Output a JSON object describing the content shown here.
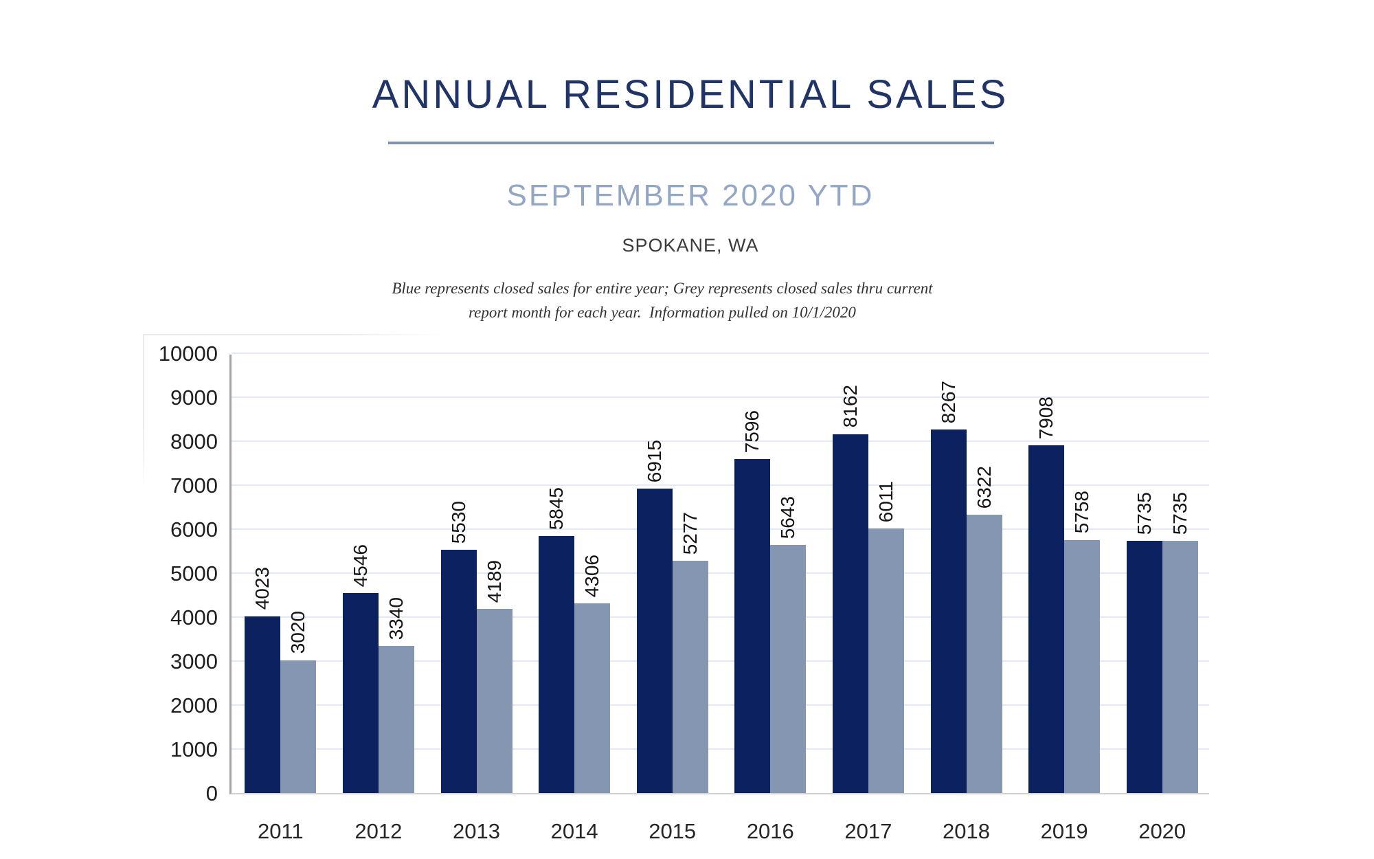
{
  "header": {
    "title": "ANNUAL RESIDENTIAL SALES",
    "subtitle": "SEPTEMBER 2020 YTD",
    "location": "SPOKANE, WA",
    "note_line1": "Blue represents closed sales for entire year; Grey represents closed sales thru current",
    "note_line2": "report month for each year.  Information pulled on 10/1/2020"
  },
  "colors": {
    "title_navy": "#203467",
    "subtitle_steel": "#93a7c4",
    "divider": "#8091b5",
    "bar_blue": "#0b2160",
    "bar_grey": "#8496b1",
    "gridline": "#e2e8f4",
    "axis_vertical": "#a3a3a3",
    "axis_baseline": "#d2d2d2",
    "value_label": "#141414"
  },
  "chart_data": {
    "type": "bar",
    "title": "ANNUAL RESIDENTIAL SALES — SEPTEMBER 2020 YTD — SPOKANE, WA",
    "categories": [
      "2011",
      "2012",
      "2013",
      "2014",
      "2015",
      "2016",
      "2017",
      "2018",
      "2019",
      "2020"
    ],
    "series": [
      {
        "name": "Blue — closed sales for entire year",
        "color": "#0b2160",
        "values": [
          4023,
          4546,
          5530,
          5845,
          6915,
          7596,
          8162,
          8267,
          7908,
          5735
        ]
      },
      {
        "name": "Grey — closed sales thru current report month",
        "color": "#8496b1",
        "values": [
          3020,
          3340,
          4189,
          4306,
          5277,
          5643,
          6011,
          6322,
          5758,
          5735
        ]
      }
    ],
    "xlabel": "",
    "ylabel": "",
    "ylim": [
      0,
      10000
    ],
    "ytick_interval": 1000,
    "yticks": [
      0,
      1000,
      2000,
      3000,
      4000,
      5000,
      6000,
      7000,
      8000,
      9000,
      10000
    ],
    "grid": "horizontal",
    "legend_position": "none",
    "value_labels": "rotated-vertical-above-bars"
  }
}
